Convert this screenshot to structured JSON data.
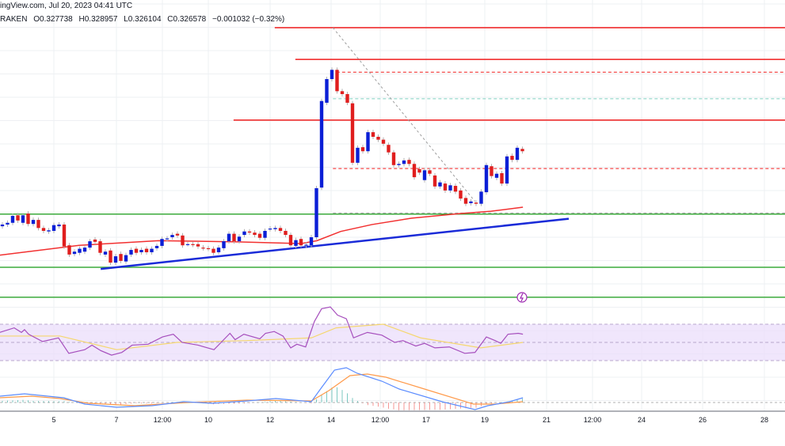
{
  "header": {
    "source_line": "ingView.com, Jul 20, 2023 04:41 UTC",
    "exchange": "RAKEN",
    "open": "O0.327738",
    "high": "H0.328957",
    "low": "L0.326104",
    "close": "C0.326578",
    "change": "−0.001032 (−0.32%)"
  },
  "chart_data": {
    "type": "candlestick",
    "title": "",
    "x_tick_labels": [
      "5",
      "7",
      "12:00",
      "10",
      "12",
      "14",
      "12:00",
      "17",
      "19",
      "21",
      "12:00",
      "24",
      "26",
      "28"
    ],
    "grid": true,
    "colors": {
      "up": "#0b1fd6",
      "down": "#e01e1e",
      "ma": "#f23030",
      "trendline": "#1a2bd8",
      "support": "#3cab3c",
      "resistance": "#f01c1c",
      "rsi": "#a64fbd",
      "rsi_ma": "#f5d76e",
      "rsi_band": "#eadcfb",
      "macd": "#5b8cff",
      "signal": "#ff9a4a"
    },
    "candles_open_close": [
      [
        0.3132,
        0.3135
      ],
      [
        0.3135,
        0.3138
      ],
      [
        0.3138,
        0.315
      ],
      [
        0.3151,
        0.3142
      ],
      [
        0.3138,
        0.3151
      ],
      [
        0.3154,
        0.3136
      ],
      [
        0.3136,
        0.3143
      ],
      [
        0.3143,
        0.3129
      ],
      [
        0.3129,
        0.3124
      ],
      [
        0.3123,
        0.3125
      ],
      [
        0.3124,
        0.3134
      ],
      [
        0.3132,
        0.3135
      ],
      [
        0.3135,
        0.3097
      ],
      [
        0.3099,
        0.3083
      ],
      [
        0.3084,
        0.3088
      ],
      [
        0.3086,
        0.3093
      ],
      [
        0.3088,
        0.3095
      ],
      [
        0.3095,
        0.3106
      ],
      [
        0.3109,
        0.3105
      ],
      [
        0.3106,
        0.3086
      ],
      [
        0.3083,
        0.3088
      ],
      [
        0.309,
        0.3069
      ],
      [
        0.3069,
        0.308
      ],
      [
        0.3084,
        0.3072
      ],
      [
        0.3071,
        0.3082
      ],
      [
        0.3083,
        0.3091
      ],
      [
        0.3093,
        0.3086
      ],
      [
        0.3087,
        0.3091
      ],
      [
        0.3093,
        0.3087
      ],
      [
        0.3087,
        0.3093
      ],
      [
        0.3094,
        0.3098
      ],
      [
        0.3098,
        0.311
      ],
      [
        0.311,
        0.3111
      ],
      [
        0.3113,
        0.3117
      ],
      [
        0.3119,
        0.3116
      ],
      [
        0.3116,
        0.3099
      ],
      [
        0.3101,
        0.3101
      ],
      [
        0.3101,
        0.31
      ],
      [
        0.3101,
        0.3097
      ],
      [
        0.3095,
        0.3094
      ],
      [
        0.3094,
        0.3093
      ],
      [
        0.3093,
        0.3086
      ],
      [
        0.3087,
        0.3095
      ],
      [
        0.3094,
        0.3106
      ],
      [
        0.3106,
        0.3119
      ],
      [
        0.3119,
        0.3106
      ],
      [
        0.3106,
        0.3114
      ],
      [
        0.3117,
        0.3123
      ],
      [
        0.3123,
        0.3121
      ],
      [
        0.3121,
        0.3117
      ],
      [
        0.3119,
        0.3112
      ],
      [
        0.3112,
        0.3124
      ],
      [
        0.3127,
        0.3128
      ],
      [
        0.3127,
        0.3129
      ],
      [
        0.3129,
        0.3124
      ],
      [
        0.3124,
        0.3117
      ],
      [
        0.3117,
        0.3099
      ],
      [
        0.3098,
        0.3108
      ],
      [
        0.311,
        0.3099
      ],
      [
        0.3099,
        0.31
      ],
      [
        0.3099,
        0.3113
      ],
      [
        0.3113,
        0.3198
      ],
      [
        0.3199,
        0.3349
      ],
      [
        0.3346,
        0.3387
      ],
      [
        0.3387,
        0.3403
      ],
      [
        0.3403,
        0.3366
      ],
      [
        0.3366,
        0.3361
      ],
      [
        0.3361,
        0.3346
      ],
      [
        0.3345,
        0.3242
      ],
      [
        0.3242,
        0.3268
      ],
      [
        0.3269,
        0.3262
      ],
      [
        0.3262,
        0.3295
      ],
      [
        0.3295,
        0.3287
      ],
      [
        0.3287,
        0.3282
      ],
      [
        0.3282,
        0.3275
      ],
      [
        0.3273,
        0.326
      ],
      [
        0.326,
        0.3238
      ],
      [
        0.3238,
        0.324
      ],
      [
        0.324,
        0.3246
      ],
      [
        0.3247,
        0.324
      ],
      [
        0.324,
        0.3217
      ],
      [
        0.3231,
        0.3225
      ],
      [
        0.3212,
        0.3229
      ],
      [
        0.3229,
        0.3223
      ],
      [
        0.322,
        0.3201
      ],
      [
        0.3201,
        0.3208
      ],
      [
        0.3206,
        0.3194
      ],
      [
        0.3194,
        0.3203
      ],
      [
        0.3202,
        0.3192
      ],
      [
        0.3194,
        0.318
      ],
      [
        0.3181,
        0.3171
      ],
      [
        0.3172,
        0.3175
      ],
      [
        0.3173,
        0.3171
      ],
      [
        0.3171,
        0.3192
      ],
      [
        0.3191,
        0.3238
      ],
      [
        0.3236,
        0.3219
      ],
      [
        0.3216,
        0.3223
      ],
      [
        0.3224,
        0.3206
      ],
      [
        0.3206,
        0.3253
      ],
      [
        0.3254,
        0.3247
      ],
      [
        0.3247,
        0.3268
      ],
      [
        0.3266,
        0.3262
      ]
    ],
    "moving_average": [
      [
        -0.5,
        0.3082
      ],
      [
        14.9,
        0.3099
      ],
      [
        30.3,
        0.3107
      ],
      [
        45.7,
        0.3105
      ],
      [
        58,
        0.3102
      ],
      [
        61.1,
        0.3107
      ],
      [
        65.7,
        0.3123
      ],
      [
        71.8,
        0.3135
      ],
      [
        79.5,
        0.3146
      ],
      [
        88.8,
        0.3154
      ],
      [
        94.9,
        0.3158
      ],
      [
        101.1,
        0.3165
      ]
    ],
    "trendline": [
      [
        19.1,
        0.3058
      ],
      [
        110,
        0.3145
      ]
    ],
    "dotted_trendline": [
      [
        64.2,
        0.3476
      ],
      [
        91.8,
        0.3175
      ]
    ],
    "horizontal_levels": [
      {
        "price": 0.3476,
        "from_bar": 52.9,
        "style": "solid",
        "color": "resistance"
      },
      {
        "price": 0.3421,
        "from_bar": 56.9,
        "style": "solid",
        "color": "resistance"
      },
      {
        "price": 0.3399,
        "from_bar": 64.9,
        "style": "dashed",
        "color": "resistance"
      },
      {
        "price": 0.3353,
        "from_bar": 64.2,
        "style": "dashed",
        "color": "teal"
      },
      {
        "price": 0.3316,
        "from_bar": 44.9,
        "style": "solid",
        "color": "resistance"
      },
      {
        "price": 0.3232,
        "from_bar": 64.2,
        "style": "dashed",
        "color": "resistance"
      },
      {
        "price": 0.3155,
        "from_bar": 64.2,
        "style": "dashed",
        "color": "grey"
      },
      {
        "price": 0.3153,
        "from_bar": -1,
        "style": "solid",
        "color": "support"
      },
      {
        "price": 0.3061,
        "from_bar": -1,
        "style": "solid",
        "color": "support"
      },
      {
        "price": 0.3009,
        "from_bar": -1,
        "style": "solid",
        "color": "support"
      }
    ],
    "rsi": {
      "band": [
        30,
        70
      ],
      "values": [
        [
          -0.5,
          61
        ],
        [
          2.3,
          66
        ],
        [
          3.7,
          61
        ],
        [
          4.3,
          64
        ],
        [
          5.1,
          59
        ],
        [
          7.8,
          51
        ],
        [
          10.9,
          55
        ],
        [
          12.9,
          38
        ],
        [
          16,
          42
        ],
        [
          17.4,
          47
        ],
        [
          19.1,
          41
        ],
        [
          21.2,
          36
        ],
        [
          23.2,
          39
        ],
        [
          25.2,
          47
        ],
        [
          28.3,
          48
        ],
        [
          31.1,
          56
        ],
        [
          33.2,
          59
        ],
        [
          34.9,
          50
        ],
        [
          38,
          47
        ],
        [
          41.1,
          42
        ],
        [
          44.2,
          60
        ],
        [
          45.2,
          53
        ],
        [
          46.9,
          59
        ],
        [
          50,
          54
        ],
        [
          51.1,
          60
        ],
        [
          52.8,
          62
        ],
        [
          54.5,
          57
        ],
        [
          56,
          44
        ],
        [
          57.2,
          48
        ],
        [
          58.9,
          45
        ],
        [
          60.6,
          73
        ],
        [
          62,
          87
        ],
        [
          63.7,
          89
        ],
        [
          65.1,
          80
        ],
        [
          66.8,
          76
        ],
        [
          68.2,
          55
        ],
        [
          69.5,
          58
        ],
        [
          70.9,
          61
        ],
        [
          73.7,
          58
        ],
        [
          76.2,
          50
        ],
        [
          77.8,
          52
        ],
        [
          80.3,
          46
        ],
        [
          82,
          49
        ],
        [
          84,
          44
        ],
        [
          86.8,
          45
        ],
        [
          89.8,
          38
        ],
        [
          91.8,
          39
        ],
        [
          94,
          56
        ],
        [
          95.7,
          52
        ],
        [
          96.8,
          49
        ],
        [
          98.2,
          59
        ],
        [
          100.2,
          60
        ],
        [
          101.1,
          59
        ]
      ],
      "ma": [
        [
          -0.5,
          57
        ],
        [
          11.2,
          57
        ],
        [
          22.2,
          42
        ],
        [
          33.9,
          50
        ],
        [
          47.5,
          52
        ],
        [
          60,
          55
        ],
        [
          64.8,
          66
        ],
        [
          74,
          70
        ],
        [
          81.2,
          55
        ],
        [
          92.9,
          44
        ],
        [
          101.1,
          50
        ]
      ]
    },
    "macd": {
      "macd": [
        [
          -0.5,
          0.0016
        ],
        [
          4.3,
          0.0022
        ],
        [
          11.9,
          0.0012
        ],
        [
          16,
          -0.0004
        ],
        [
          22.2,
          -0.0012
        ],
        [
          29.1,
          -0.0008
        ],
        [
          35.2,
          0.0002
        ],
        [
          40.8,
          -0.0002
        ],
        [
          47.5,
          0.0004
        ],
        [
          53.1,
          0.001
        ],
        [
          60,
          0.0002
        ],
        [
          62,
          0.0038
        ],
        [
          64.5,
          0.0082
        ],
        [
          66.8,
          0.0088
        ],
        [
          68.9,
          0.0074
        ],
        [
          73.7,
          0.0054
        ],
        [
          77.1,
          0.0034
        ],
        [
          85.4,
          0.0002
        ],
        [
          91.8,
          -0.0018
        ],
        [
          94.3,
          -0.0008
        ],
        [
          98.5,
          0.0002
        ],
        [
          101.1,
          0.0012
        ]
      ],
      "signal": [
        [
          -0.5,
          0.0012
        ],
        [
          5.7,
          0.0016
        ],
        [
          11.2,
          0.001
        ],
        [
          16.8,
          -0.0002
        ],
        [
          25.7,
          -0.0008
        ],
        [
          36,
          0
        ],
        [
          47.5,
          0.0006
        ],
        [
          60,
          0.0004
        ],
        [
          63.4,
          0.003
        ],
        [
          67.5,
          0.0068
        ],
        [
          70.9,
          0.0072
        ],
        [
          74.5,
          0.0064
        ],
        [
          82,
          0.0034
        ],
        [
          91.5,
          -0.0004
        ],
        [
          95.7,
          -0.0004
        ],
        [
          101.1,
          0.0002
        ]
      ]
    }
  }
}
